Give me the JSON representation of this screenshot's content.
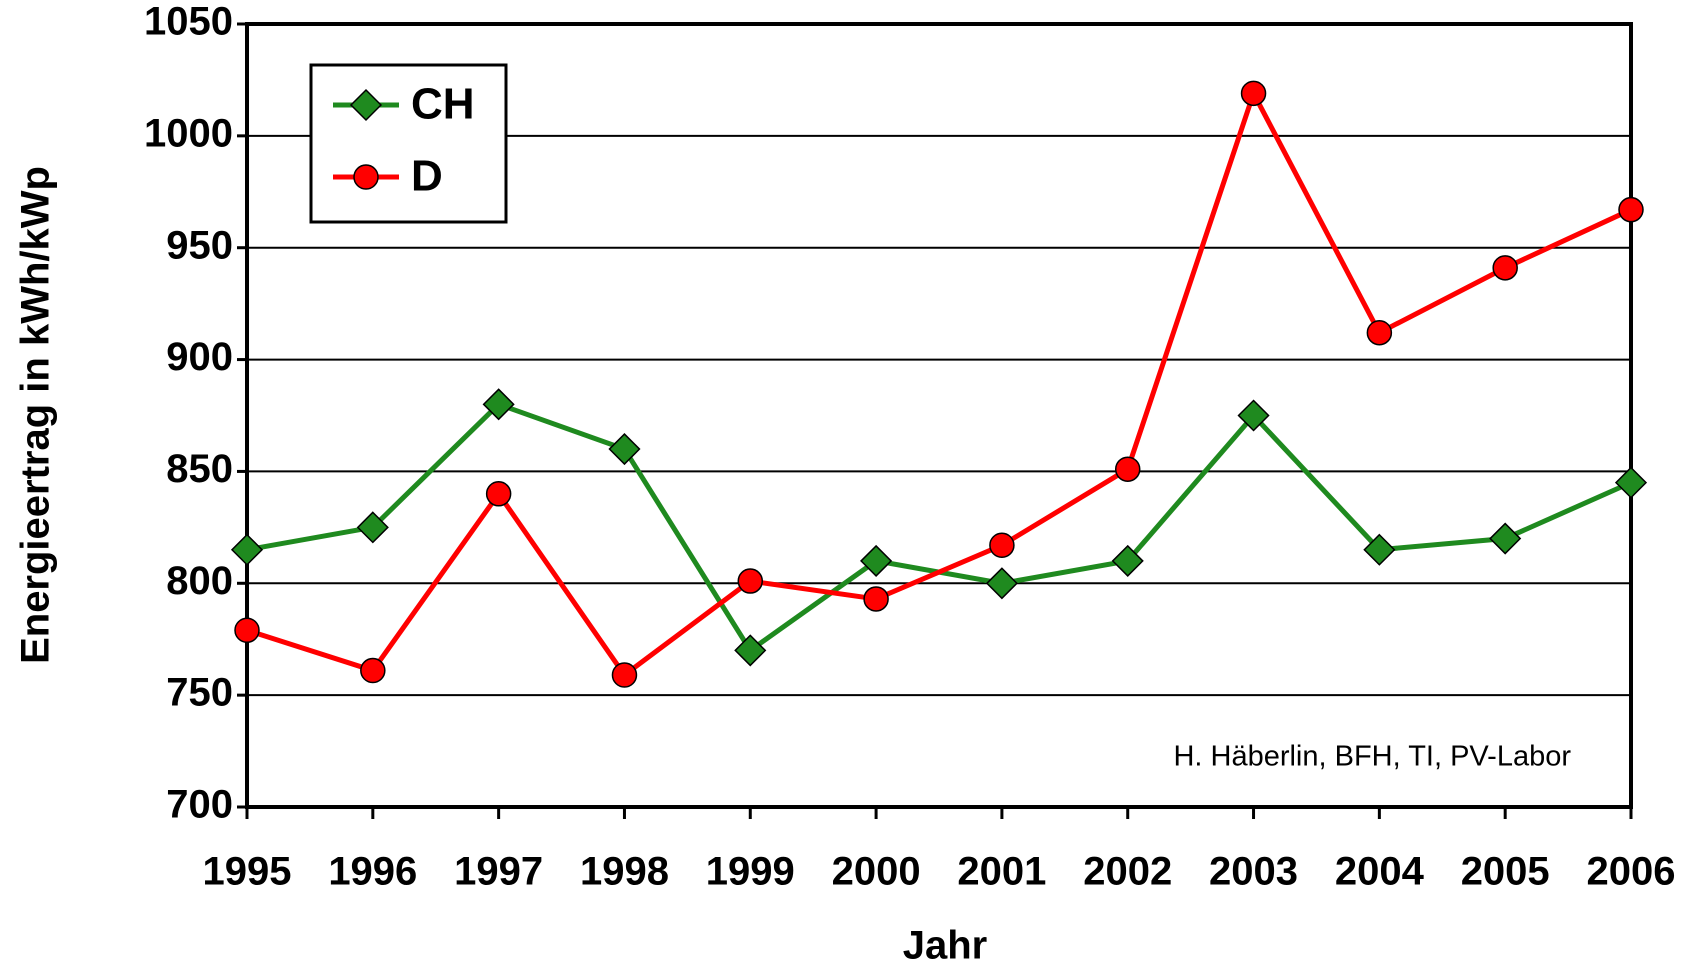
{
  "chart_data": {
    "type": "line",
    "y_label": "Energieertrag in kWh/kWp",
    "x_label": "Jahr",
    "annotation": "H. Häberlin, BFH, TI, PV-Labor",
    "categories": [
      "1995",
      "1996",
      "1997",
      "1998",
      "1999",
      "2000",
      "2001",
      "2002",
      "2003",
      "2004",
      "2005",
      "2006"
    ],
    "series": [
      {
        "name": "CH",
        "color": "#1f8a1f",
        "marker": "diamond",
        "values": [
          815,
          825,
          880,
          860,
          770,
          810,
          800,
          810,
          875,
          815,
          820,
          845
        ]
      },
      {
        "name": "D",
        "color": "#ff0000",
        "marker": "circle",
        "values": [
          779,
          761,
          840,
          759,
          801,
          793,
          817,
          851,
          1019,
          912,
          941,
          967
        ]
      }
    ],
    "ylim": [
      700,
      1050
    ],
    "yticks": [
      700,
      750,
      800,
      850,
      900,
      950,
      1000,
      1050
    ],
    "grid": true,
    "legend": "upper left"
  }
}
